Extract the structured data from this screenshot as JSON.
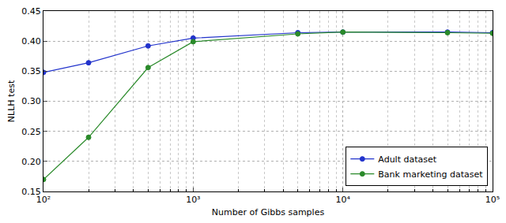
{
  "chart_data": {
    "type": "line",
    "x_label": "Number of Gibbs samples",
    "y_label": "NLLH test",
    "x": [
      100,
      200,
      500,
      1000,
      5000,
      10000,
      50000,
      100000
    ],
    "series": [
      {
        "name": "Adult dataset",
        "color": "#2233cc",
        "marker": "circle",
        "line_style": "solid",
        "values": [
          0.348,
          0.364,
          0.392,
          0.405,
          0.414,
          0.415,
          0.415,
          0.414
        ]
      },
      {
        "name": "Bank marketing dataset",
        "color": "#2a8a2a",
        "marker": "circle",
        "line_style": "solid",
        "values": [
          0.17,
          0.24,
          0.356,
          0.399,
          0.412,
          0.415,
          0.414,
          0.413
        ]
      }
    ],
    "log": "x",
    "xlim": [
      100,
      100000
    ],
    "xticks": [
      {
        "value": 100,
        "label": "10²"
      },
      {
        "value": 1000,
        "label": "10³"
      },
      {
        "value": 10000,
        "label": "10⁴"
      },
      {
        "value": 100000,
        "label": "10⁵"
      }
    ],
    "ylim": [
      0.15,
      0.45
    ],
    "yticks": [
      {
        "value": 0.15,
        "label": "0.15"
      },
      {
        "value": 0.2,
        "label": "0.20"
      },
      {
        "value": 0.25,
        "label": "0.25"
      },
      {
        "value": 0.3,
        "label": "0.30"
      },
      {
        "value": 0.35,
        "label": "0.35"
      },
      {
        "value": 0.4,
        "label": "0.40"
      },
      {
        "value": 0.45,
        "label": "0.45"
      }
    ],
    "grid": true,
    "legend": "lower right"
  }
}
